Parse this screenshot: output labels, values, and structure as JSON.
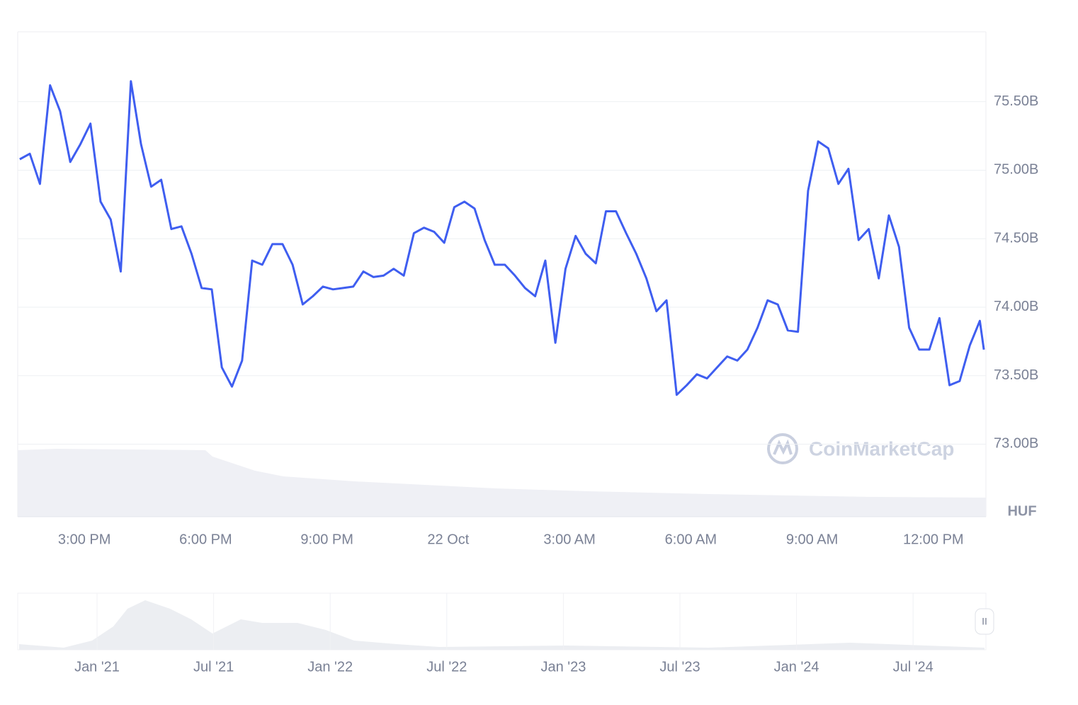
{
  "chart_data": {
    "type": "line",
    "currency_label": "HUF",
    "watermark": "CoinMarketCap",
    "xlim": [
      13.35,
      37.3
    ],
    "xticks": [
      {
        "value": 15,
        "label": "3:00 PM"
      },
      {
        "value": 18,
        "label": "6:00 PM"
      },
      {
        "value": 21,
        "label": "9:00 PM"
      },
      {
        "value": 24,
        "label": "22 Oct"
      },
      {
        "value": 27,
        "label": "3:00 AM"
      },
      {
        "value": 30,
        "label": "6:00 AM"
      },
      {
        "value": 33,
        "label": "9:00 AM"
      },
      {
        "value": 36,
        "label": "12:00 PM"
      }
    ],
    "ylim": [
      72.47,
      76.01
    ],
    "yticks": [
      {
        "value": 73,
        "label": "73.00B"
      },
      {
        "value": 73.5,
        "label": "73.50B"
      },
      {
        "value": 74,
        "label": "74.00B"
      },
      {
        "value": 74.5,
        "label": "74.50B"
      },
      {
        "value": 75,
        "label": "75.00B"
      },
      {
        "value": 75.5,
        "label": "75.50B"
      }
    ],
    "grid": true,
    "series": [
      {
        "color": "#3f5ef0",
        "x": [
          13.4,
          13.65,
          13.9,
          14.15,
          14.4,
          14.65,
          14.9,
          15.15,
          15.4,
          15.65,
          15.9,
          16.15,
          16.4,
          16.65,
          16.9,
          17.15,
          17.4,
          17.65,
          17.9,
          18.15,
          18.4,
          18.65,
          18.9,
          19.15,
          19.4,
          19.65,
          19.9,
          20.15,
          20.4,
          20.65,
          20.9,
          21.15,
          21.4,
          21.65,
          21.9,
          22.15,
          22.4,
          22.65,
          22.9,
          23.15,
          23.4,
          23.65,
          23.9,
          24.15,
          24.4,
          24.65,
          24.9,
          25.15,
          25.4,
          25.65,
          25.9,
          26.15,
          26.4,
          26.65,
          26.9,
          27.15,
          27.4,
          27.65,
          27.9,
          28.15,
          28.4,
          28.65,
          28.9,
          29.15,
          29.4,
          29.65,
          29.9,
          30.15,
          30.4,
          30.65,
          30.9,
          31.15,
          31.4,
          31.65,
          31.9,
          32.15,
          32.4,
          32.65,
          32.9,
          33.15,
          33.4,
          33.65,
          33.9,
          34.15,
          34.4,
          34.65,
          34.9,
          35.15,
          35.4,
          35.65,
          35.9,
          36.15,
          36.4,
          36.65,
          36.9,
          37.15,
          37.25
        ],
        "values": [
          75.08,
          75.12,
          74.9,
          75.62,
          75.43,
          75.06,
          75.19,
          75.34,
          74.77,
          74.64,
          74.26,
          75.65,
          75.19,
          74.88,
          74.93,
          74.57,
          74.59,
          74.39,
          74.14,
          74.13,
          73.56,
          73.42,
          73.61,
          74.34,
          74.31,
          74.46,
          74.46,
          74.31,
          74.02,
          74.08,
          74.15,
          74.13,
          74.14,
          74.15,
          74.26,
          74.22,
          74.23,
          74.28,
          74.23,
          74.54,
          74.58,
          74.55,
          74.47,
          74.73,
          74.77,
          74.72,
          74.49,
          74.31,
          74.31,
          74.23,
          74.14,
          74.08,
          74.34,
          73.74,
          74.28,
          74.52,
          74.39,
          74.32,
          74.7,
          74.7,
          74.54,
          74.39,
          74.21,
          73.97,
          74.05,
          73.36,
          73.43,
          73.51,
          73.48,
          73.56,
          73.64,
          73.61,
          73.69,
          73.85,
          74.05,
          74.02,
          73.83,
          73.82,
          74.85,
          75.21,
          75.16,
          74.9,
          75.01,
          74.49,
          74.57,
          74.21,
          74.67,
          74.44,
          73.85,
          73.69,
          73.69,
          73.92,
          73.43,
          73.46,
          73.72,
          73.9,
          73.69
        ]
      }
    ],
    "navigator_labels": [
      "Jan '21",
      "Jul '21",
      "Jan '22",
      "Jul '22",
      "Jan '23",
      "Jul '23",
      "Jan '24",
      "Jul '24"
    ]
  }
}
